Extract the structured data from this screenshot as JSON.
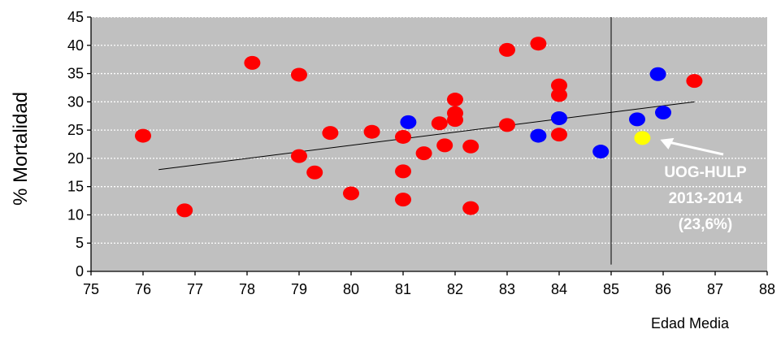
{
  "chart_data": {
    "type": "scatter",
    "xlabel": "Edad Media",
    "ylabel": "% Mortalidad",
    "xlim": [
      75,
      88
    ],
    "ylim": [
      0,
      45
    ],
    "x_ticks": [
      75,
      76,
      77,
      78,
      79,
      80,
      81,
      82,
      83,
      84,
      85,
      86,
      87,
      88
    ],
    "y_ticks": [
      0,
      5,
      10,
      15,
      20,
      25,
      30,
      35,
      40,
      45
    ],
    "grid": "horizontal-dotted",
    "background": "#c0c0c0",
    "series": [
      {
        "color": "#ff0000",
        "points": [
          {
            "x": 76.0,
            "y": 24.0
          },
          {
            "x": 76.8,
            "y": 10.8
          },
          {
            "x": 78.1,
            "y": 36.9
          },
          {
            "x": 79.0,
            "y": 34.8
          },
          {
            "x": 79.0,
            "y": 20.4
          },
          {
            "x": 79.3,
            "y": 17.5
          },
          {
            "x": 79.6,
            "y": 24.5
          },
          {
            "x": 80.0,
            "y": 13.8
          },
          {
            "x": 80.4,
            "y": 24.7
          },
          {
            "x": 81.0,
            "y": 23.8
          },
          {
            "x": 81.0,
            "y": 17.7
          },
          {
            "x": 81.0,
            "y": 12.7
          },
          {
            "x": 81.4,
            "y": 20.9
          },
          {
            "x": 81.7,
            "y": 26.2
          },
          {
            "x": 81.8,
            "y": 22.3
          },
          {
            "x": 82.0,
            "y": 30.4
          },
          {
            "x": 82.0,
            "y": 28.0
          },
          {
            "x": 82.0,
            "y": 26.8
          },
          {
            "x": 82.3,
            "y": 22.1
          },
          {
            "x": 82.3,
            "y": 11.2
          },
          {
            "x": 83.0,
            "y": 39.2
          },
          {
            "x": 83.0,
            "y": 25.9
          },
          {
            "x": 83.6,
            "y": 40.3
          },
          {
            "x": 84.0,
            "y": 32.9
          },
          {
            "x": 84.0,
            "y": 31.2
          },
          {
            "x": 84.0,
            "y": 24.2
          },
          {
            "x": 86.6,
            "y": 33.7
          }
        ]
      },
      {
        "color": "#0000ff",
        "points": [
          {
            "x": 81.1,
            "y": 26.4
          },
          {
            "x": 83.6,
            "y": 24.0
          },
          {
            "x": 84.0,
            "y": 27.1
          },
          {
            "x": 84.8,
            "y": 21.2
          },
          {
            "x": 85.5,
            "y": 26.9
          },
          {
            "x": 85.9,
            "y": 34.9
          },
          {
            "x": 86.0,
            "y": 28.1
          }
        ]
      },
      {
        "color": "#ffff00",
        "points": [
          {
            "x": 85.6,
            "y": 23.6
          }
        ]
      }
    ],
    "trendline": {
      "x": [
        76.3,
        86.6
      ],
      "y": [
        18.0,
        30.0
      ],
      "color": "#000000"
    },
    "reference_line": {
      "x": 85.0,
      "y_range": [
        1.2,
        45.0
      ],
      "color": "#000000"
    },
    "annotation": {
      "lines": [
        "UOG-HULP",
        "2013-2014",
        "(23,6%)"
      ],
      "arrow_to": {
        "x": 85.6,
        "y": 23.6
      },
      "color": "#ffffff"
    }
  }
}
